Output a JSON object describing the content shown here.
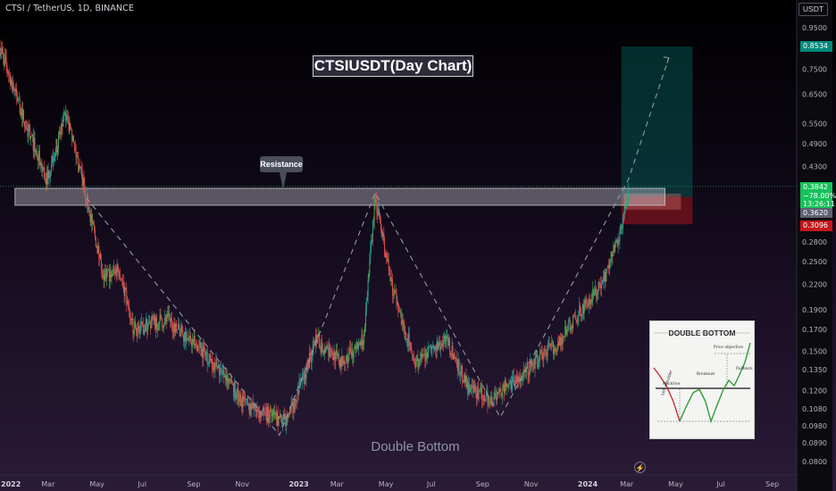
{
  "header": {
    "symbol_line": "CTSI / TetherUS, 1D, BINANCE",
    "currency": "USDT"
  },
  "annotations": {
    "title": "CTSIUSDT(Day Chart)",
    "resistance": "Resistance",
    "pattern": "Double Bottom"
  },
  "price_tags": {
    "target": "0.8534",
    "last_price": "0.3842",
    "change": "−78.00%",
    "countdown": "13:26:11",
    "entry": "0.3620",
    "stop": "0.3096"
  },
  "inset": {
    "title": "DOUBLE BOTTOM",
    "labels": [
      "Price objective",
      "Breakout",
      "Pullback",
      "Neckline",
      "Left shoulder"
    ]
  },
  "colors": {
    "up_candle": "#26a69a",
    "up_candle_bright": "#4caf50",
    "down_candle": "#ef5350",
    "resistance_zone": "#d1d4dc",
    "target_zone": "#00897b",
    "stop_zone": "#c2181b",
    "path_line": "#9598a1",
    "last_price_line": "#16c25a"
  },
  "chart_data": {
    "type": "candlestick",
    "scale": "log",
    "ylim": [
      0.075,
      1.05
    ],
    "x_ticks": [
      "2022",
      "Mar",
      "May",
      "Jul",
      "Sep",
      "Nov",
      "2023",
      "Mar",
      "May",
      "Jul",
      "Sep",
      "Nov",
      "2024",
      "Mar",
      "May",
      "Jul",
      "Sep"
    ],
    "y_ticks": [
      "0.9500",
      "0.8534",
      "0.7500",
      "0.6500",
      "0.5500",
      "0.4900",
      "0.4300",
      "0.3842",
      "0.3620",
      "0.3096",
      "0.2800",
      "0.2500",
      "0.2200",
      "0.1900",
      "0.1700",
      "0.1500",
      "0.1350",
      "0.1200",
      "0.1080",
      "0.0980",
      "0.0890",
      "0.0800"
    ],
    "price_path": [
      [
        "2022-01-01",
        0.85
      ],
      [
        "2022-02-01",
        0.56
      ],
      [
        "2022-03-01",
        0.4
      ],
      [
        "2022-03-25",
        0.58
      ],
      [
        "2022-04-15",
        0.4
      ],
      [
        "2022-05-12",
        0.23
      ],
      [
        "2022-06-01",
        0.24
      ],
      [
        "2022-06-18",
        0.17
      ],
      [
        "2022-08-01",
        0.18
      ],
      [
        "2022-09-15",
        0.15
      ],
      [
        "2022-11-09",
        0.11
      ],
      [
        "2022-12-30",
        0.1
      ],
      [
        "2023-02-05",
        0.16
      ],
      [
        "2023-03-10",
        0.14
      ],
      [
        "2023-04-05",
        0.16
      ],
      [
        "2023-04-20",
        0.36
      ],
      [
        "2023-05-10",
        0.22
      ],
      [
        "2023-06-10",
        0.14
      ],
      [
        "2023-07-20",
        0.16
      ],
      [
        "2023-08-17",
        0.12
      ],
      [
        "2023-09-15",
        0.115
      ],
      [
        "2023-10-20",
        0.13
      ],
      [
        "2023-12-10",
        0.16
      ],
      [
        "2024-01-05",
        0.19
      ],
      [
        "2024-02-01",
        0.22
      ],
      [
        "2024-02-25",
        0.3
      ],
      [
        "2024-03-05",
        0.384
      ]
    ],
    "resistance_zone": [
      0.345,
      0.38
    ],
    "projection_path": [
      [
        "2022-04-20",
        0.36
      ],
      [
        "2022-12-20",
        0.093
      ],
      [
        "2023-04-20",
        0.37
      ],
      [
        "2023-09-25",
        0.103
      ],
      [
        "2024-03-05",
        0.4
      ],
      [
        "2024-04-25",
        0.8
      ]
    ],
    "position": {
      "entry": 0.362,
      "target": 0.8534,
      "stop": 0.3096,
      "last_price": 0.3842
    }
  }
}
